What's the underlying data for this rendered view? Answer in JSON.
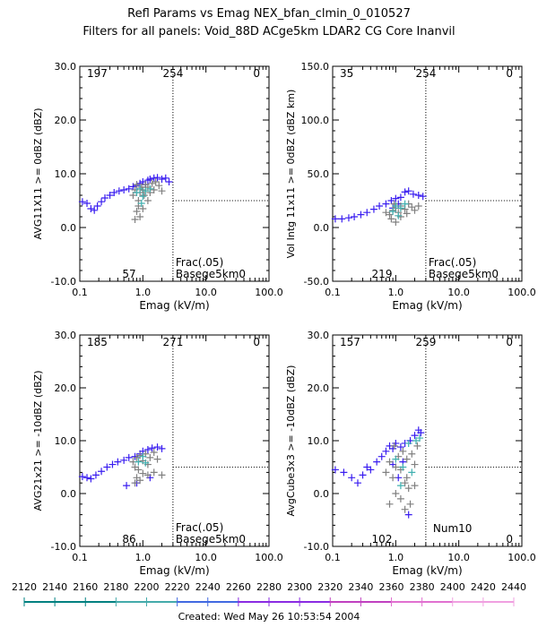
{
  "figure": {
    "title": "Refl Params vs Emag    NEX_bfan_clmin_0_010527",
    "subtitle": "Filters for all panels:  Void_88D ACge5km LDAR2 CG Core Inanvil",
    "footer": "Created: Wed May 26 10:53:54 2004"
  },
  "colorbar": {
    "ticks": [
      "2120",
      "2140",
      "2160",
      "2180",
      "2200",
      "2220",
      "2240",
      "2260",
      "2280",
      "2300",
      "2320",
      "2340",
      "2360",
      "2380",
      "2400",
      "2420",
      "2440"
    ],
    "colors": [
      "#008080",
      "#4aa",
      "#4169e1",
      "#8a2be2",
      "#c040c0",
      "#e070d0",
      "#f0a0e0"
    ]
  },
  "chart_data": [
    {
      "type": "scatter",
      "xlabel": "Emag (kV/m)",
      "ylabel": "AVG11X11 >= 0dBZ (dBZ)",
      "xscale": "log",
      "xlim": [
        0.1,
        100.0
      ],
      "ylim": [
        -10.0,
        30.0
      ],
      "xticks": [
        "0.1",
        "1.0",
        "10.0",
        "100.0"
      ],
      "yticks": [
        "-10.0",
        "0.0",
        "10.0",
        "20.0",
        "30.0"
      ],
      "vline_x": 3.0,
      "hline_y": 5.0,
      "counts": {
        "top_left": "197",
        "top_mid": "254",
        "top_right": "0",
        "bottom_mid": "57"
      },
      "annotations": [
        "Frac(.05)",
        "Basege5km0"
      ],
      "series": [
        {
          "color": "#3a1ef0",
          "points": [
            [
              0.11,
              4.8
            ],
            [
              0.13,
              4.5
            ],
            [
              0.15,
              3.5
            ],
            [
              0.17,
              3.2
            ],
            [
              0.19,
              4.0
            ],
            [
              0.22,
              4.8
            ],
            [
              0.25,
              5.5
            ],
            [
              0.3,
              6.0
            ],
            [
              0.35,
              6.5
            ],
            [
              0.42,
              6.8
            ],
            [
              0.5,
              7.0
            ],
            [
              0.6,
              7.2
            ],
            [
              0.7,
              7.6
            ],
            [
              0.8,
              7.8
            ],
            [
              0.9,
              8.2
            ],
            [
              1.0,
              8.5
            ],
            [
              1.1,
              8.0
            ],
            [
              1.2,
              8.8
            ],
            [
              1.3,
              9.0
            ],
            [
              1.5,
              9.2
            ],
            [
              1.7,
              9.3
            ],
            [
              2.0,
              9.0
            ],
            [
              2.3,
              9.2
            ],
            [
              2.6,
              8.5
            ]
          ]
        },
        {
          "color": "#808080",
          "points": [
            [
              0.7,
              6.0
            ],
            [
              0.75,
              7.0
            ],
            [
              0.8,
              8.0
            ],
            [
              0.85,
              5.0
            ],
            [
              0.9,
              6.5
            ],
            [
              0.95,
              7.5
            ],
            [
              1.0,
              7.0
            ],
            [
              1.05,
              6.0
            ],
            [
              1.1,
              8.0
            ],
            [
              1.2,
              7.5
            ],
            [
              1.3,
              6.5
            ],
            [
              1.4,
              8.2
            ],
            [
              1.5,
              7.0
            ],
            [
              1.6,
              8.5
            ],
            [
              1.8,
              7.8
            ],
            [
              2.0,
              6.8
            ],
            [
              0.75,
              1.5
            ],
            [
              0.8,
              3.0
            ],
            [
              0.9,
              2.0
            ],
            [
              1.0,
              3.5
            ],
            [
              0.85,
              4.0
            ],
            [
              1.2,
              5.0
            ]
          ]
        },
        {
          "color": "#40b0b0",
          "points": [
            [
              0.8,
              6.5
            ],
            [
              0.9,
              7.2
            ],
            [
              1.0,
              5.8
            ],
            [
              1.1,
              6.8
            ],
            [
              1.3,
              7.2
            ],
            [
              0.95,
              4.5
            ]
          ]
        }
      ]
    },
    {
      "type": "scatter",
      "xlabel": "Emag (kV/m)",
      "ylabel": "Vol Intg 11x11 >= 0dBZ (dBZ km)",
      "xscale": "log",
      "xlim": [
        0.1,
        100.0
      ],
      "ylim": [
        -50.0,
        150.0
      ],
      "xticks": [
        "0.1",
        "1.0",
        "10.0",
        "100.0"
      ],
      "yticks": [
        "-50.0",
        "0.0",
        "50.0",
        "100.0",
        "150.0"
      ],
      "vline_x": 3.0,
      "hline_y": 25.0,
      "counts": {
        "top_left": "35",
        "top_mid": "254",
        "top_right": "0",
        "bottom_mid": "219"
      },
      "annotations": [
        "Frac(.05)",
        "Basege5km0"
      ],
      "series": [
        {
          "color": "#3a1ef0",
          "points": [
            [
              0.11,
              8
            ],
            [
              0.14,
              8
            ],
            [
              0.18,
              9
            ],
            [
              0.22,
              10
            ],
            [
              0.28,
              12
            ],
            [
              0.35,
              14
            ],
            [
              0.45,
              17
            ],
            [
              0.55,
              20
            ],
            [
              0.7,
              22
            ],
            [
              0.85,
              25
            ],
            [
              1.0,
              27
            ],
            [
              1.2,
              28
            ],
            [
              1.4,
              33
            ],
            [
              1.6,
              34
            ],
            [
              1.9,
              31
            ],
            [
              2.3,
              30
            ],
            [
              2.7,
              29
            ],
            [
              0.9,
              18
            ],
            [
              1.1,
              22
            ]
          ]
        },
        {
          "color": "#808080",
          "points": [
            [
              0.7,
              14
            ],
            [
              0.8,
              12
            ],
            [
              0.9,
              16
            ],
            [
              1.0,
              18
            ],
            [
              1.1,
              14
            ],
            [
              1.2,
              20
            ],
            [
              1.4,
              17
            ],
            [
              1.6,
              22
            ],
            [
              1.8,
              19
            ],
            [
              2.0,
              16
            ],
            [
              0.85,
              8
            ],
            [
              1.0,
              5
            ],
            [
              1.2,
              10
            ],
            [
              0.95,
              22
            ],
            [
              1.5,
              13
            ],
            [
              2.3,
              20
            ]
          ]
        },
        {
          "color": "#40b0b0",
          "points": [
            [
              0.9,
              15
            ],
            [
              1.0,
              20
            ],
            [
              1.2,
              18
            ],
            [
              1.4,
              22
            ],
            [
              1.1,
              11
            ]
          ]
        }
      ]
    },
    {
      "type": "scatter",
      "xlabel": "Emag (kV/m)",
      "ylabel": "AVG21x21 >= -10dBZ (dBZ)",
      "xscale": "log",
      "xlim": [
        0.1,
        100.0
      ],
      "ylim": [
        -10.0,
        30.0
      ],
      "xticks": [
        "0.1",
        "1.0",
        "10.0",
        "100.0"
      ],
      "yticks": [
        "-10.0",
        "0.0",
        "10.0",
        "20.0",
        "30.0"
      ],
      "vline_x": 3.0,
      "hline_y": 5.0,
      "counts": {
        "top_left": "185",
        "top_mid": "271",
        "top_right": "0",
        "bottom_mid": "86"
      },
      "annotations": [
        "Frac(.05)",
        "Basege5km0"
      ],
      "series": [
        {
          "color": "#3a1ef0",
          "points": [
            [
              0.11,
              3.2
            ],
            [
              0.13,
              3.0
            ],
            [
              0.15,
              2.8
            ],
            [
              0.18,
              3.5
            ],
            [
              0.22,
              4.2
            ],
            [
              0.27,
              5.0
            ],
            [
              0.33,
              5.5
            ],
            [
              0.4,
              6.0
            ],
            [
              0.5,
              6.3
            ],
            [
              0.6,
              6.8
            ],
            [
              0.75,
              7.0
            ],
            [
              0.9,
              7.5
            ],
            [
              1.0,
              8.0
            ],
            [
              1.2,
              8.3
            ],
            [
              1.4,
              8.6
            ],
            [
              1.7,
              8.8
            ],
            [
              2.0,
              8.5
            ],
            [
              0.55,
              1.5
            ],
            [
              0.8,
              2.0
            ],
            [
              1.3,
              3.0
            ]
          ]
        },
        {
          "color": "#808080",
          "points": [
            [
              0.7,
              6.0
            ],
            [
              0.75,
              5.0
            ],
            [
              0.8,
              6.8
            ],
            [
              0.85,
              4.5
            ],
            [
              0.9,
              7.2
            ],
            [
              1.0,
              6.2
            ],
            [
              1.1,
              7.5
            ],
            [
              1.2,
              5.5
            ],
            [
              1.3,
              6.8
            ],
            [
              1.5,
              7.8
            ],
            [
              1.7,
              6.5
            ],
            [
              0.75,
              2.0
            ],
            [
              0.8,
              3.0
            ],
            [
              0.9,
              2.5
            ],
            [
              1.0,
              3.8
            ],
            [
              1.2,
              3.5
            ],
            [
              1.5,
              4.0
            ],
            [
              2.0,
              3.5
            ]
          ]
        },
        {
          "color": "#40b0b0",
          "points": [
            [
              0.85,
              6.0
            ],
            [
              1.0,
              7.0
            ],
            [
              1.1,
              5.8
            ]
          ]
        }
      ]
    },
    {
      "type": "scatter",
      "xlabel": "Emag (kV/m)",
      "ylabel": "AvgCube3x3 >= -10dBZ (dBZ)",
      "xscale": "log",
      "xlim": [
        0.1,
        100.0
      ],
      "ylim": [
        -10.0,
        30.0
      ],
      "xticks": [
        "0.1",
        "1.0",
        "10.0",
        "100.0"
      ],
      "yticks": [
        "-10.0",
        "0.0",
        "10.0",
        "20.0",
        "30.0"
      ],
      "vline_x": 3.0,
      "hline_y": 5.0,
      "counts": {
        "top_left": "157",
        "top_mid": "259",
        "top_right": "0",
        "bottom_mid": "102",
        "bottom_right": "0"
      },
      "annotations": [
        "Num10"
      ],
      "series": [
        {
          "color": "#3a1ef0",
          "points": [
            [
              0.11,
              4.5
            ],
            [
              0.15,
              4.0
            ],
            [
              0.2,
              3.0
            ],
            [
              0.25,
              2.0
            ],
            [
              0.3,
              3.5
            ],
            [
              0.35,
              5.0
            ],
            [
              0.4,
              4.5
            ],
            [
              0.5,
              6.0
            ],
            [
              0.6,
              7.0
            ],
            [
              0.7,
              8.0
            ],
            [
              0.8,
              9.0
            ],
            [
              0.9,
              8.5
            ],
            [
              1.0,
              9.5
            ],
            [
              1.2,
              8.8
            ],
            [
              1.4,
              9.5
            ],
            [
              1.7,
              10.0
            ],
            [
              2.0,
              11.0
            ],
            [
              2.3,
              12.0
            ],
            [
              2.5,
              11.5
            ],
            [
              1.3,
              6.0
            ],
            [
              1.1,
              3.0
            ],
            [
              1.6,
              -4.0
            ],
            [
              0.9,
              5.5
            ]
          ]
        },
        {
          "color": "#808080",
          "points": [
            [
              0.7,
              4.0
            ],
            [
              0.8,
              6.0
            ],
            [
              0.9,
              3.0
            ],
            [
              1.0,
              5.0
            ],
            [
              1.1,
              7.0
            ],
            [
              1.2,
              4.5
            ],
            [
              1.3,
              8.0
            ],
            [
              1.4,
              2.0
            ],
            [
              1.5,
              6.5
            ],
            [
              1.6,
              1.0
            ],
            [
              1.8,
              7.5
            ],
            [
              2.0,
              5.5
            ],
            [
              2.2,
              9.0
            ],
            [
              0.8,
              -2.0
            ],
            [
              1.0,
              0.0
            ],
            [
              1.2,
              -1.0
            ],
            [
              1.4,
              -3.0
            ],
            [
              1.5,
              3.0
            ],
            [
              2.0,
              1.5
            ],
            [
              0.95,
              9.0
            ],
            [
              1.7,
              -2.0
            ]
          ]
        },
        {
          "color": "#40b0b0",
          "points": [
            [
              1.0,
              6.5
            ],
            [
              1.3,
              5.0
            ],
            [
              1.6,
              9.5
            ],
            [
              2.1,
              10.0
            ],
            [
              1.2,
              1.5
            ],
            [
              1.8,
              4.0
            ],
            [
              2.4,
              10.5
            ]
          ]
        }
      ]
    }
  ]
}
